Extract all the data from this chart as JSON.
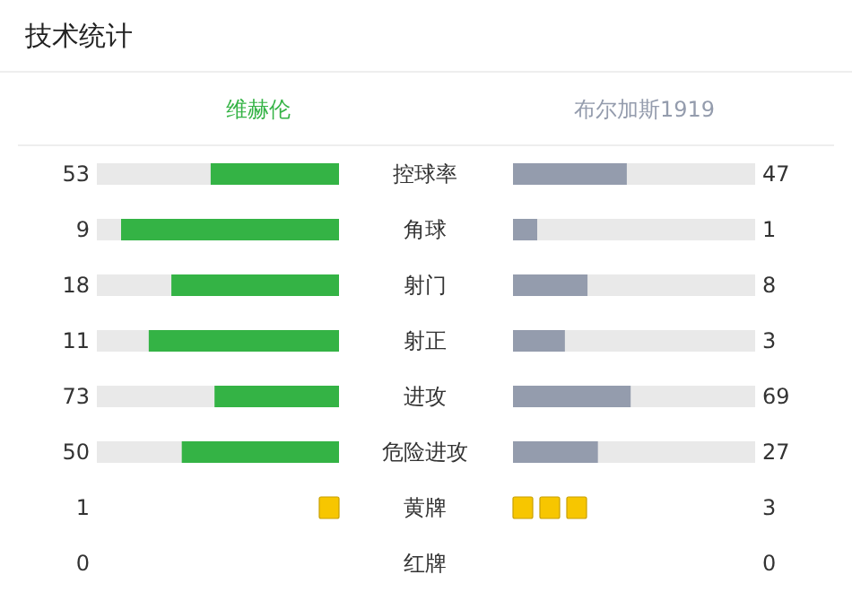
{
  "chart_data": {
    "type": "other",
    "title": "技术统计",
    "categories": [
      "控球率",
      "角球",
      "射门",
      "射正",
      "进攻",
      "危险进攻",
      "黄牌",
      "红牌"
    ],
    "series": [
      {
        "name": "维赫伦",
        "color": "#34b345",
        "values": [
          53,
          9,
          18,
          11,
          73,
          50,
          1,
          0
        ],
        "colors": [
          "#34b345",
          "#34b345",
          "#34b345",
          "#34b345",
          "#34b345",
          "#34b345",
          "#f7c600",
          "#e53935"
        ]
      },
      {
        "name": "布尔加斯1919",
        "color": "#949cad",
        "values": [
          47,
          1,
          8,
          3,
          69,
          27,
          3,
          0
        ],
        "colors": [
          "#949cad",
          "#949cad",
          "#949cad",
          "#949cad",
          "#949cad",
          "#949cad",
          "#f7c600",
          "#e53935"
        ]
      }
    ],
    "data_labels": true
  }
}
